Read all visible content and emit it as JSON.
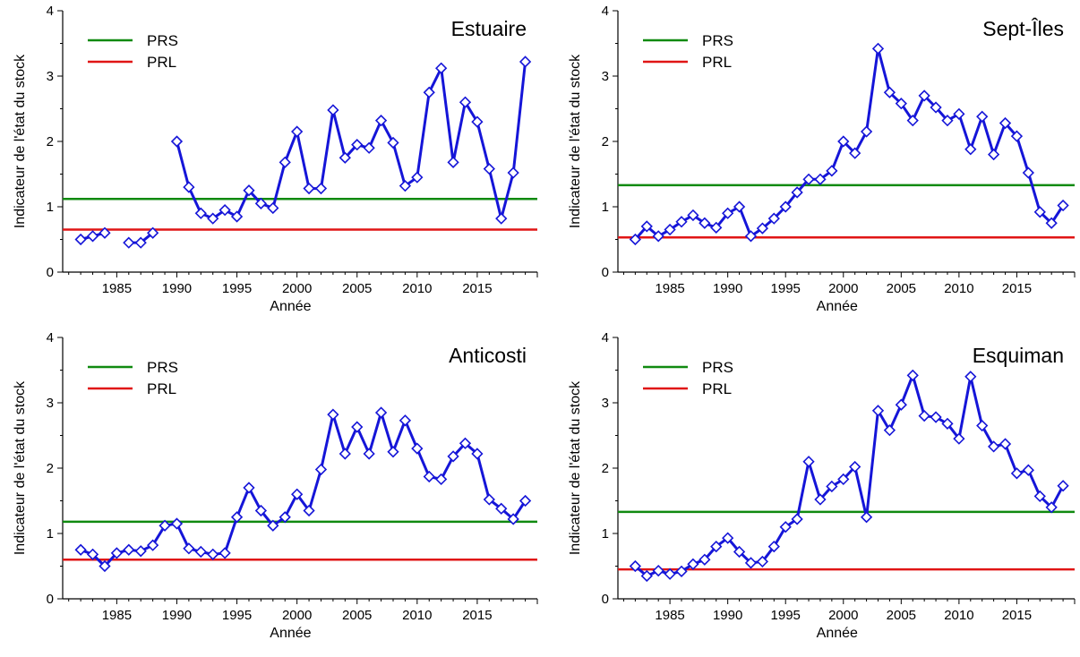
{
  "colors": {
    "series": "#1515d8",
    "prs": "#108a10",
    "prl": "#e01515",
    "axis": "#000000"
  },
  "chart_data": [
    {
      "type": "line",
      "title": "Estuaire",
      "xlabel": "Année",
      "ylabel": "Indicateur de l'état du stock",
      "xlim": [
        1980.5,
        2020
      ],
      "ylim": [
        0,
        4
      ],
      "xticks": [
        "1985",
        "1990",
        "1995",
        "2000",
        "2005",
        "2010",
        "2015"
      ],
      "yticks": [
        "0",
        "1",
        "2",
        "3",
        "4"
      ],
      "legend": [
        {
          "label": "PRS",
          "value": 1.12
        },
        {
          "label": "PRL",
          "value": 0.65
        }
      ],
      "x": [
        1982,
        1983,
        1984,
        1985,
        1986,
        1987,
        1988,
        1989,
        1990,
        1991,
        1992,
        1993,
        1994,
        1995,
        1996,
        1997,
        1998,
        1999,
        2000,
        2001,
        2002,
        2003,
        2004,
        2005,
        2006,
        2007,
        2008,
        2009,
        2010,
        2011,
        2012,
        2013,
        2014,
        2015,
        2016,
        2017,
        2018,
        2019
      ],
      "y": [
        0.5,
        0.55,
        0.6,
        null,
        0.45,
        0.45,
        0.6,
        null,
        2.0,
        1.3,
        0.9,
        0.82,
        0.95,
        0.85,
        1.25,
        1.05,
        0.98,
        1.68,
        2.15,
        1.28,
        1.28,
        2.48,
        1.75,
        1.95,
        1.9,
        2.32,
        1.98,
        1.32,
        1.45,
        2.75,
        3.12,
        1.68,
        2.6,
        2.3,
        1.58,
        0.82,
        1.52,
        3.22
      ]
    },
    {
      "type": "line",
      "title": "Sept-Îles",
      "xlabel": "Année",
      "ylabel": "Indicateur de l'état du stock",
      "xlim": [
        1980.5,
        2020
      ],
      "ylim": [
        0,
        4
      ],
      "xticks": [
        "1985",
        "1990",
        "1995",
        "2000",
        "2005",
        "2010",
        "2015"
      ],
      "yticks": [
        "0",
        "1",
        "2",
        "3",
        "4"
      ],
      "legend": [
        {
          "label": "PRS",
          "value": 1.33
        },
        {
          "label": "PRL",
          "value": 0.53
        }
      ],
      "x": [
        1982,
        1983,
        1984,
        1985,
        1986,
        1987,
        1988,
        1989,
        1990,
        1991,
        1992,
        1993,
        1994,
        1995,
        1996,
        1997,
        1998,
        1999,
        2000,
        2001,
        2002,
        2003,
        2004,
        2005,
        2006,
        2007,
        2008,
        2009,
        2010,
        2011,
        2012,
        2013,
        2014,
        2015,
        2016,
        2017,
        2018,
        2019
      ],
      "y": [
        0.5,
        0.7,
        0.55,
        0.65,
        0.77,
        0.87,
        0.75,
        0.68,
        0.9,
        1.0,
        0.55,
        0.67,
        0.82,
        1.0,
        1.22,
        1.42,
        1.42,
        1.55,
        2.0,
        1.82,
        2.15,
        3.42,
        2.75,
        2.58,
        2.32,
        2.7,
        2.52,
        2.32,
        2.42,
        1.88,
        2.38,
        1.8,
        2.28,
        2.08,
        1.52,
        0.92,
        0.75,
        1.02
      ]
    },
    {
      "type": "line",
      "title": "Anticosti",
      "xlabel": "Année",
      "ylabel": "Indicateur de l'état du stock",
      "xlim": [
        1980.5,
        2020
      ],
      "ylim": [
        0,
        4
      ],
      "xticks": [
        "1985",
        "1990",
        "1995",
        "2000",
        "2005",
        "2010",
        "2015"
      ],
      "yticks": [
        "0",
        "1",
        "2",
        "3",
        "4"
      ],
      "legend": [
        {
          "label": "PRS",
          "value": 1.18
        },
        {
          "label": "PRL",
          "value": 0.6
        }
      ],
      "x": [
        1982,
        1983,
        1984,
        1985,
        1986,
        1987,
        1988,
        1989,
        1990,
        1991,
        1992,
        1993,
        1994,
        1995,
        1996,
        1997,
        1998,
        1999,
        2000,
        2001,
        2002,
        2003,
        2004,
        2005,
        2006,
        2007,
        2008,
        2009,
        2010,
        2011,
        2012,
        2013,
        2014,
        2015,
        2016,
        2017,
        2018,
        2019
      ],
      "y": [
        0.75,
        0.68,
        0.5,
        0.7,
        0.75,
        0.73,
        0.82,
        1.12,
        1.15,
        0.77,
        0.72,
        0.68,
        0.7,
        1.25,
        1.7,
        1.35,
        1.12,
        1.25,
        1.6,
        1.35,
        1.98,
        2.82,
        2.22,
        2.63,
        2.22,
        2.85,
        2.25,
        2.73,
        2.3,
        1.87,
        1.83,
        2.18,
        2.38,
        2.22,
        1.52,
        1.38,
        1.22,
        1.5
      ]
    },
    {
      "type": "line",
      "title": "Esquiman",
      "xlabel": "Année",
      "ylabel": "Indicateur de l'état du stock",
      "xlim": [
        1980.5,
        2020
      ],
      "ylim": [
        0,
        4
      ],
      "xticks": [
        "1985",
        "1990",
        "1995",
        "2000",
        "2005",
        "2010",
        "2015"
      ],
      "yticks": [
        "0",
        "1",
        "2",
        "3",
        "4"
      ],
      "legend": [
        {
          "label": "PRS",
          "value": 1.33
        },
        {
          "label": "PRL",
          "value": 0.45
        }
      ],
      "x": [
        1982,
        1983,
        1984,
        1985,
        1986,
        1987,
        1988,
        1989,
        1990,
        1991,
        1992,
        1993,
        1994,
        1995,
        1996,
        1997,
        1998,
        1999,
        2000,
        2001,
        2002,
        2003,
        2004,
        2005,
        2006,
        2007,
        2008,
        2009,
        2010,
        2011,
        2012,
        2013,
        2014,
        2015,
        2016,
        2017,
        2018,
        2019
      ],
      "y": [
        0.5,
        0.35,
        0.43,
        0.38,
        0.42,
        0.53,
        0.6,
        0.8,
        0.93,
        0.72,
        0.55,
        0.57,
        0.8,
        1.1,
        1.22,
        2.1,
        1.52,
        1.72,
        1.83,
        2.02,
        1.25,
        2.88,
        2.58,
        2.97,
        3.42,
        2.8,
        2.78,
        2.68,
        2.45,
        3.4,
        2.65,
        2.33,
        2.37,
        1.92,
        1.97,
        1.57,
        1.4,
        1.73
      ]
    }
  ]
}
